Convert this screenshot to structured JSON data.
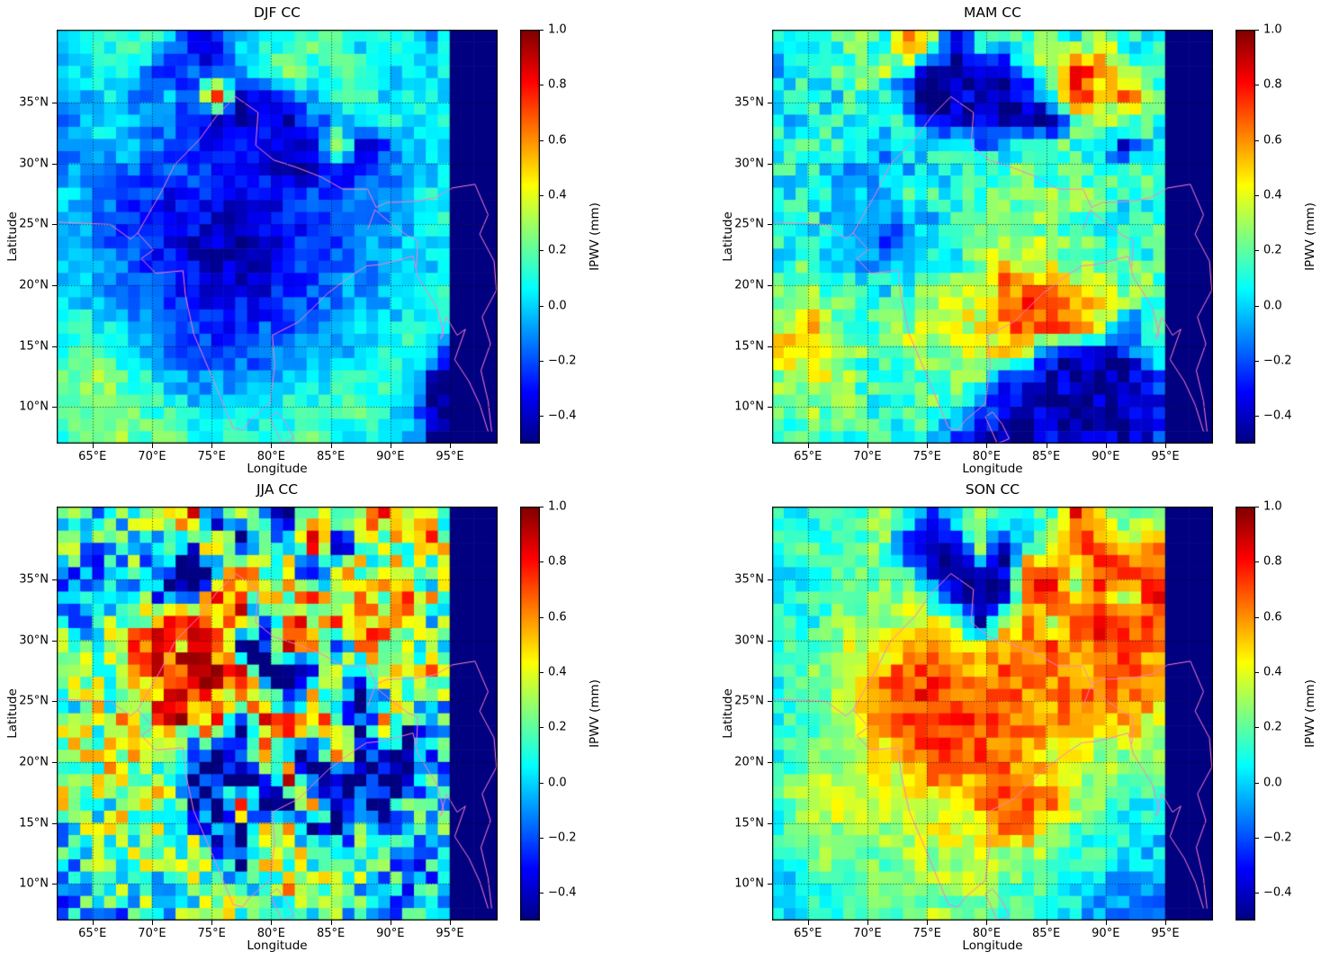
{
  "figure": {
    "background": "#ffffff"
  },
  "chart_data": {
    "type": "heatmap",
    "colormap": "jet",
    "xlabel": "Longitude",
    "ylabel": "Latitude",
    "colorbar_label": "IPWV (mm)",
    "lon_range": [
      62,
      99
    ],
    "lat_range": [
      7,
      41
    ],
    "value_range": [
      -0.5,
      1.0
    ],
    "masked_lon_min": 95.0,
    "fine_cols": 37,
    "fine_rows": 34,
    "grid_on": true,
    "map_outline_color": "#ff7ec8",
    "x_ticks": [
      {
        "v": 65,
        "label": "65°E"
      },
      {
        "v": 70,
        "label": "70°E"
      },
      {
        "v": 75,
        "label": "75°E"
      },
      {
        "v": 80,
        "label": "80°E"
      },
      {
        "v": 85,
        "label": "85°E"
      },
      {
        "v": 90,
        "label": "90°E"
      },
      {
        "v": 95,
        "label": "95°E"
      }
    ],
    "y_ticks": [
      {
        "v": 35,
        "label": "35°N"
      },
      {
        "v": 30,
        "label": "30°N"
      },
      {
        "v": 25,
        "label": "25°N"
      },
      {
        "v": 20,
        "label": "20°N"
      },
      {
        "v": 15,
        "label": "15°N"
      },
      {
        "v": 10,
        "label": "10°N"
      }
    ],
    "colorbar_ticks": [
      {
        "v": 1.0,
        "label": "1.0"
      },
      {
        "v": 0.8,
        "label": "0.8"
      },
      {
        "v": 0.6,
        "label": "0.6"
      },
      {
        "v": 0.4,
        "label": "0.4"
      },
      {
        "v": 0.2,
        "label": "0.2"
      },
      {
        "v": 0.0,
        "label": "0.0"
      },
      {
        "v": -0.2,
        "label": "−0.2"
      },
      {
        "v": -0.4,
        "label": "−0.4"
      }
    ],
    "grid_encoding": {
      "chars": "0123456789abcdef",
      "min": -0.5,
      "max": 1.0
    },
    "panels": [
      {
        "title": "DJF CC",
        "noise_seed": 11,
        "noise_amp": 0.1,
        "grid": [
          "566761256677566480",
          "556514157867656570",
          "456352e12456756560",
          "456442112134565660",
          "455433221129135650",
          "444333222112235560",
          "543322222233455650",
          "543222112233445660",
          "543321101233445560",
          "554322111234445560",
          "554432222334455660",
          "665433223344556650",
          "676543333445566500",
          "787654444556665000",
          "788765555666765000",
          "688776666676655000"
        ]
      },
      {
        "title": "MAM CC",
        "noise_seed": 22,
        "noise_amp": 0.15,
        "grid": [
          "67686d916678696660",
          "567686101168dc7660",
          "665762011027e8d760",
          "566656112110897820",
          "676545654567661640",
          "665445566776766760",
          "566556667778776670",
          "665443566787765760",
          "665434567888776670",
          "676556678b99887760",
          "787667889bccb98750",
          "9b8778899bccb92660",
          "9a8778889982112680",
          "898767788311101160",
          "787766773210110150",
          "677666632111011250"
        ]
      },
      {
        "title": "JJA CC",
        "noise_seed": 33,
        "noise_amp": 0.32,
        "grid": [
          "76676d1861967d6860",
          "654671d086c1769d60",
          "4456102d68198b6680",
          "455621dc89a896b850",
          "5668cdcb0d8cbd8660",
          "678cbcd10b91d86950",
          "789cdbcd101c186b60",
          "788bcdb8c1d1069650",
          "8898cbd0bdc81b2560",
          "8989b101c01d011550",
          "789861001d01102560",
          "8878921d10b0125650",
          "678886208911626550",
          "567788609887654540",
          "456678828987654450",
          "455667788876544530"
        ]
      },
      {
        "title": "SON CC",
        "noise_seed": 44,
        "noise_amp": 0.12,
        "grid": [
          "667687168667d87870",
          "676781018168dc8d80",
          "5667761011dc8ddcd0",
          "5677886101cd8c8dd0",
          "6678899819b8cdccc0",
          "67899bbb9bbcbccbc0",
          "6789bcccbcbbbbcbb0",
          "6789ccdcccbbcbbb90",
          "6789bccdccbbb9b880",
          "67899bcccbb9988870",
          "788999bbbcb9887760",
          "78998999bccb876660",
          "678888999cb8766550",
          "678878889887665550",
          "567778888776654540",
          "566777877766544440"
        ]
      }
    ],
    "map_outlines": [
      [
        [
          62,
          25.2
        ],
        [
          66.5,
          25.0
        ],
        [
          68.2,
          23.8
        ],
        [
          68.8,
          24.3
        ],
        [
          70.1,
          22.9
        ],
        [
          69.1,
          22.2
        ],
        [
          70.3,
          21.0
        ],
        [
          72.6,
          21.2
        ],
        [
          72.8,
          19.2
        ],
        [
          73.5,
          16.0
        ],
        [
          74.9,
          12.8
        ],
        [
          76.8,
          8.3
        ],
        [
          77.6,
          8.1
        ],
        [
          78.2,
          8.9
        ],
        [
          79.9,
          10.3
        ],
        [
          80.3,
          13.4
        ],
        [
          80.1,
          15.9
        ],
        [
          82.3,
          17.0
        ],
        [
          84.8,
          19.4
        ],
        [
          86.9,
          20.9
        ],
        [
          88.0,
          21.6
        ],
        [
          89.1,
          21.7
        ],
        [
          90.4,
          22.0
        ],
        [
          91.9,
          22.4
        ],
        [
          92.3,
          20.7
        ],
        [
          93.9,
          18.2
        ],
        [
          94.5,
          16.0
        ],
        [
          94.2,
          15.6
        ]
      ],
      [
        [
          68.8,
          24.3
        ],
        [
          70.8,
          27.7
        ],
        [
          71.9,
          29.9
        ],
        [
          74.0,
          32.0
        ],
        [
          75.4,
          33.9
        ],
        [
          77.0,
          35.5
        ],
        [
          78.9,
          34.2
        ],
        [
          78.7,
          31.5
        ],
        [
          80.2,
          30.3
        ],
        [
          82.1,
          29.7
        ],
        [
          84.2,
          28.9
        ],
        [
          86.0,
          27.9
        ],
        [
          88.1,
          27.9
        ],
        [
          88.8,
          26.4
        ],
        [
          89.7,
          26.8
        ],
        [
          92.1,
          26.9
        ],
        [
          93.8,
          27.2
        ],
        [
          95.2,
          28.0
        ],
        [
          97.1,
          28.3
        ]
      ],
      [
        [
          88.1,
          24.6
        ],
        [
          88.7,
          26.2
        ],
        [
          89.8,
          25.3
        ],
        [
          91.4,
          24.1
        ],
        [
          92.3,
          23.7
        ],
        [
          92.2,
          21.5
        ]
      ],
      [
        [
          97.1,
          28.3
        ],
        [
          98.2,
          25.8
        ],
        [
          97.5,
          24.2
        ],
        [
          98.7,
          22.0
        ],
        [
          98.9,
          19.6
        ],
        [
          97.7,
          17.4
        ],
        [
          98.4,
          15.2
        ],
        [
          97.6,
          13.0
        ],
        [
          98.2,
          10.5
        ],
        [
          98.5,
          8.0
        ]
      ],
      [
        [
          94.2,
          15.6
        ],
        [
          94.7,
          17.4
        ],
        [
          95.6,
          15.9
        ],
        [
          96.3,
          16.4
        ],
        [
          95.4,
          13.9
        ],
        [
          96.6,
          12.1
        ],
        [
          97.5,
          10.2
        ],
        [
          98.2,
          8.0
        ]
      ],
      [
        [
          79.9,
          9.2
        ],
        [
          80.5,
          9.6
        ],
        [
          81.3,
          8.6
        ],
        [
          81.9,
          7.4
        ],
        [
          80.9,
          7.0
        ],
        [
          79.9,
          9.2
        ]
      ]
    ]
  }
}
